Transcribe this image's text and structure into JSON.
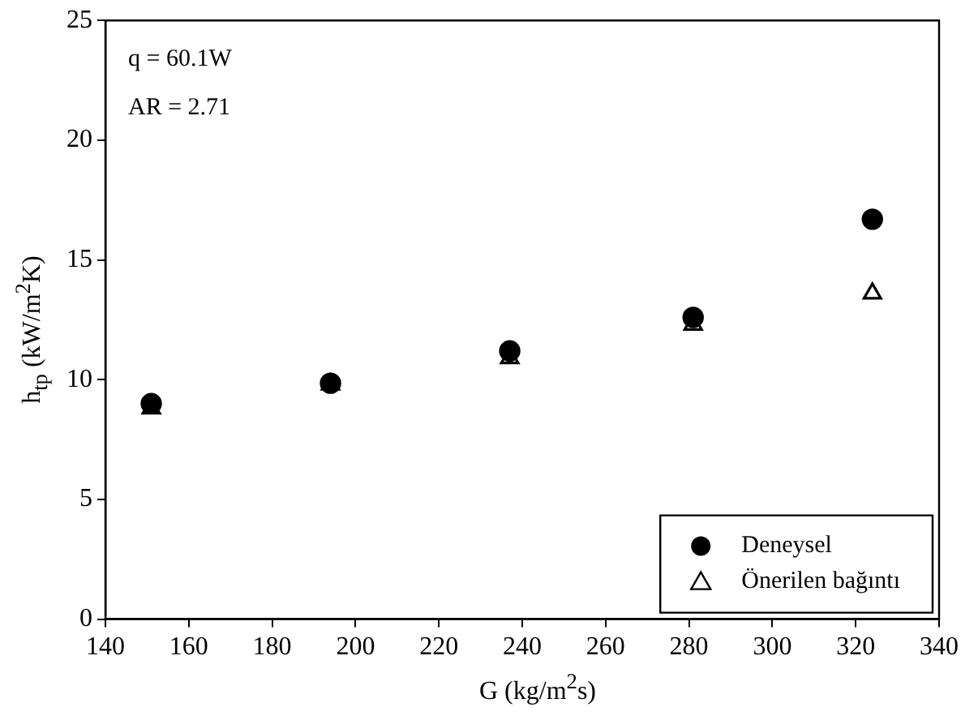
{
  "chart_data": {
    "type": "scatter",
    "xlabel": "G (kg/m$^{2}$s)",
    "ylabel": "h$_{tp}$ (kW/m$^{2}$K)",
    "annotations": [
      "q = 60.1W",
      "AR = 2.71"
    ],
    "x": [
      151,
      194,
      237,
      281,
      324
    ],
    "series": [
      {
        "name": "Deneysel",
        "color": "#000000",
        "marker": "circle",
        "values": [
          9.0,
          9.85,
          11.2,
          12.6,
          16.7
        ]
      },
      {
        "name": "Önerilen bağıntı",
        "color": "#000000",
        "marker": "triangle",
        "values": [
          8.8,
          9.8,
          10.9,
          12.3,
          13.6
        ]
      }
    ],
    "xlim": [
      140,
      340
    ],
    "xticks": [
      140,
      160,
      180,
      200,
      220,
      240,
      260,
      280,
      300,
      320,
      340
    ],
    "ylim": [
      0,
      25
    ],
    "yticks": [
      0,
      5,
      10,
      15,
      20,
      25
    ],
    "grid": false,
    "legend": "bottom right"
  }
}
